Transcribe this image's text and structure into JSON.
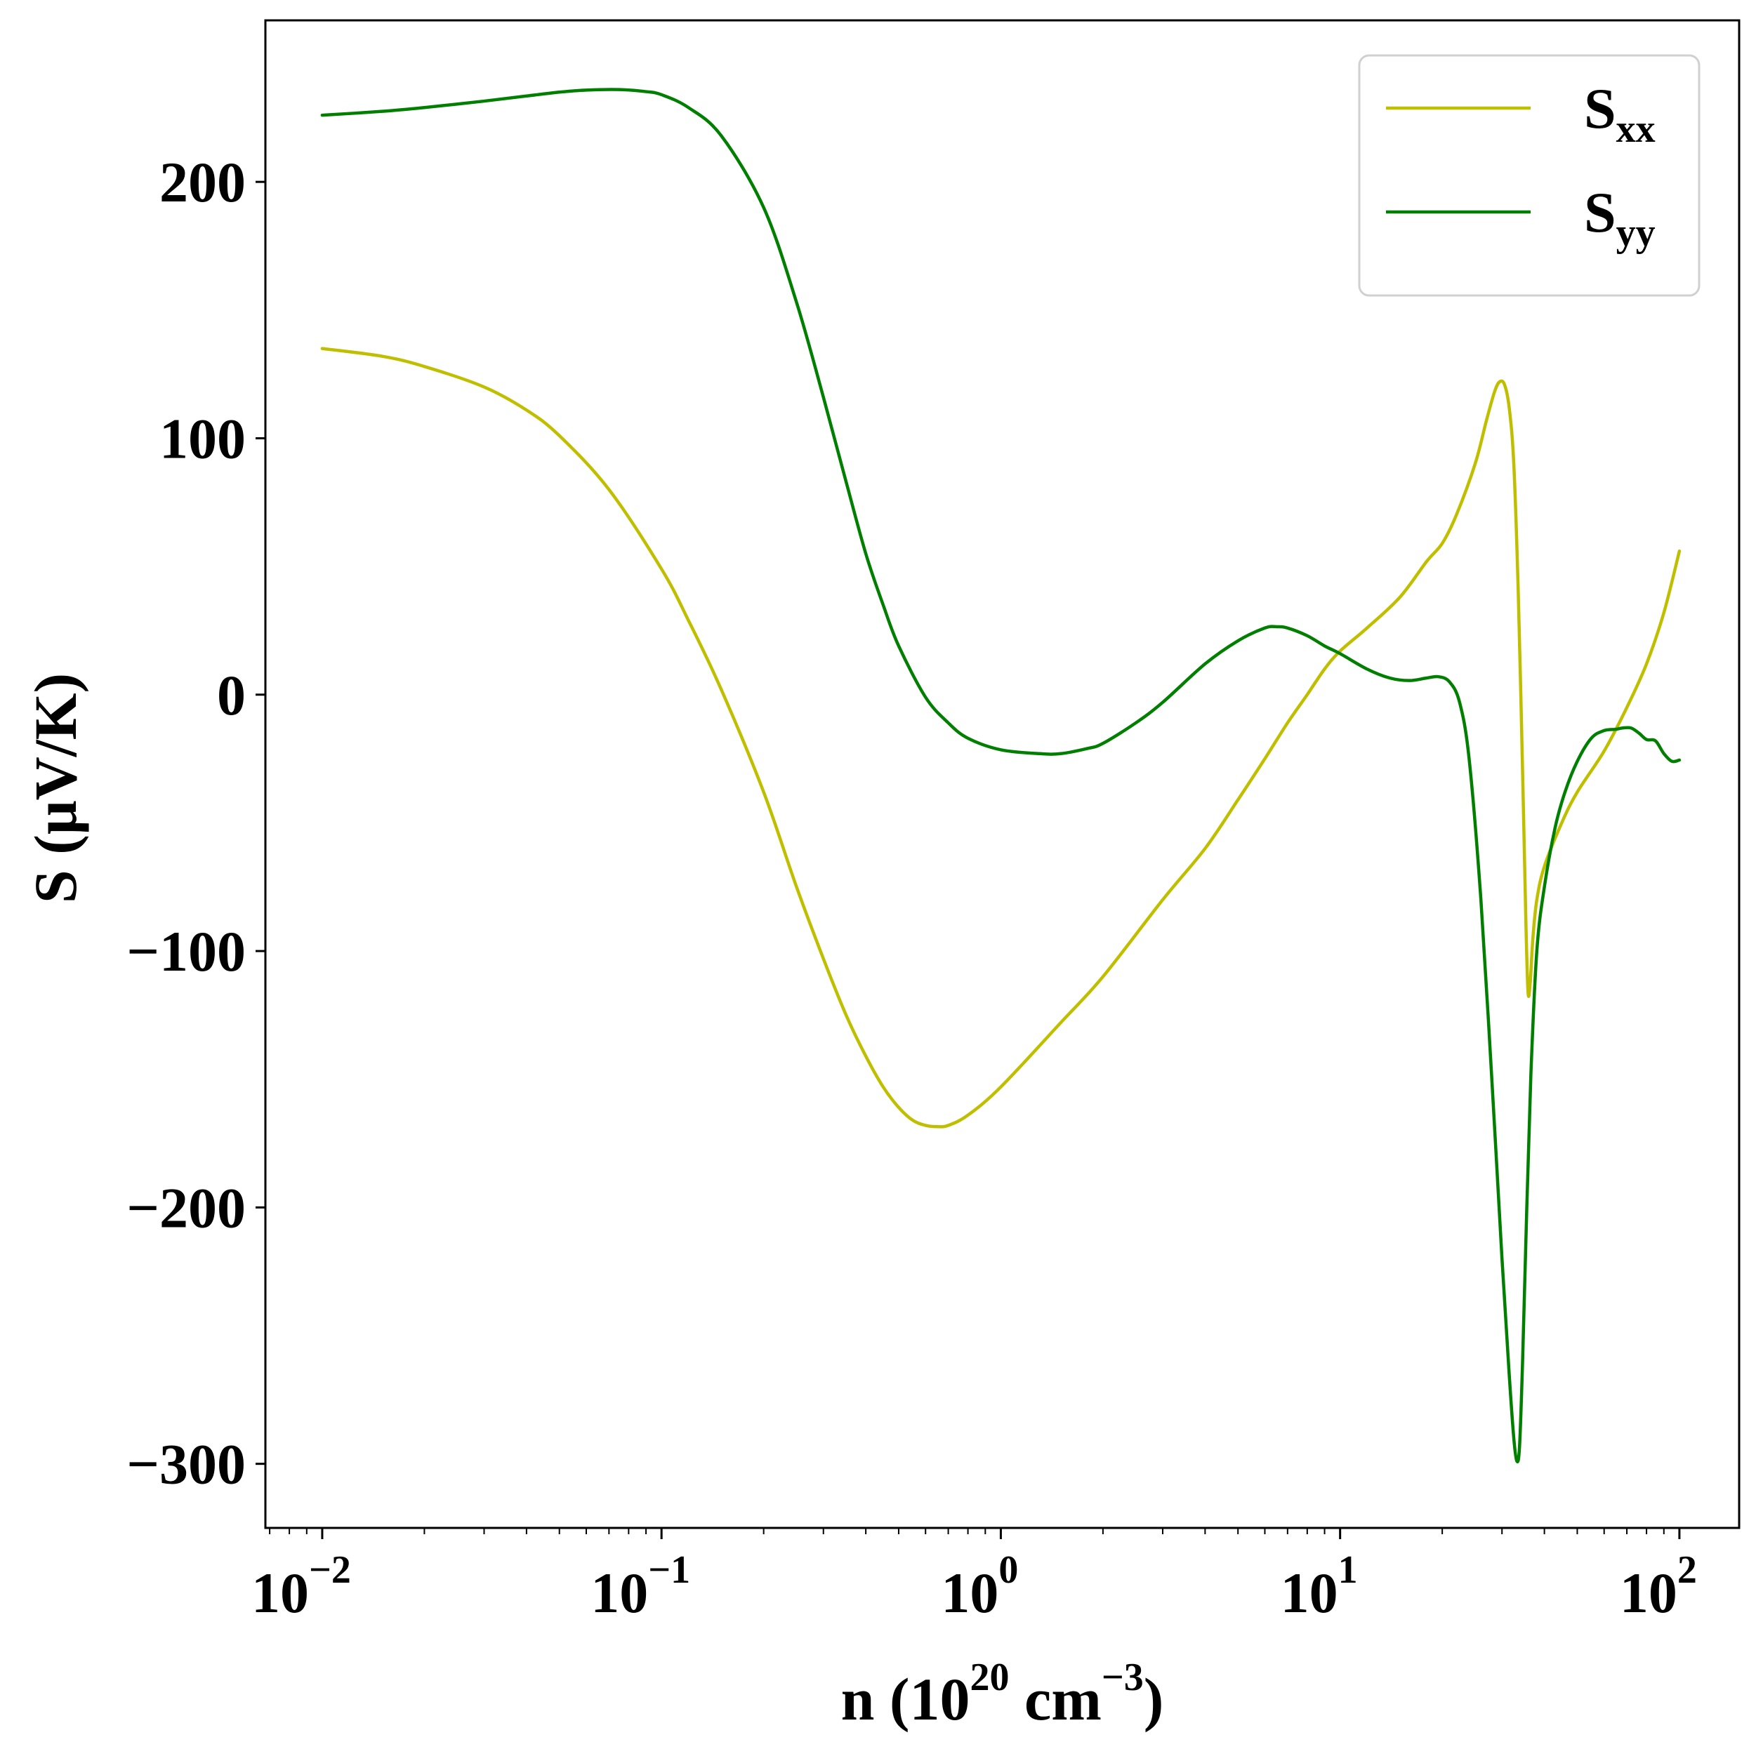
{
  "chart_data": {
    "type": "line",
    "xscale": "log",
    "xlim": [
      0.0068,
      150
    ],
    "ylim": [
      -325,
      263
    ],
    "xlabel": {
      "base": "n (10",
      "exp1": "20",
      "mid": " cm",
      "exp2": "−3",
      "end": ")"
    },
    "ylabel": "S (μV/K)",
    "grid": false,
    "legend_position": "top-right",
    "x_ticks": [
      {
        "value": 0.01,
        "base": "10",
        "exp": "−2"
      },
      {
        "value": 0.1,
        "base": "10",
        "exp": "−1"
      },
      {
        "value": 1,
        "base": "10",
        "exp": "0"
      },
      {
        "value": 10,
        "base": "10",
        "exp": "1"
      },
      {
        "value": 100,
        "base": "10",
        "exp": "2"
      }
    ],
    "y_ticks": [
      {
        "value": 200,
        "label": "200"
      },
      {
        "value": 100,
        "label": "100"
      },
      {
        "value": 0,
        "label": "0"
      },
      {
        "value": -100,
        "label": "−100"
      },
      {
        "value": -200,
        "label": "−200"
      },
      {
        "value": -300,
        "label": "−300"
      }
    ],
    "series": [
      {
        "name": "Sxx",
        "name_base": "S",
        "name_sub": "xx",
        "color": "#bfbf00",
        "points": [
          [
            0.01,
            135
          ],
          [
            0.015,
            132
          ],
          [
            0.02,
            128
          ],
          [
            0.03,
            120
          ],
          [
            0.04,
            111
          ],
          [
            0.05,
            101
          ],
          [
            0.07,
            80
          ],
          [
            0.1,
            49
          ],
          [
            0.12,
            29
          ],
          [
            0.15,
            2
          ],
          [
            0.2,
            -38
          ],
          [
            0.25,
            -75
          ],
          [
            0.3,
            -103
          ],
          [
            0.35,
            -125
          ],
          [
            0.4,
            -141
          ],
          [
            0.45,
            -153
          ],
          [
            0.5,
            -161
          ],
          [
            0.55,
            -166
          ],
          [
            0.6,
            -168
          ],
          [
            0.65,
            -168.5
          ],
          [
            0.7,
            -168
          ],
          [
            0.8,
            -164
          ],
          [
            1.0,
            -153
          ],
          [
            1.5,
            -128
          ],
          [
            2.0,
            -110
          ],
          [
            3.0,
            -80
          ],
          [
            4.0,
            -60
          ],
          [
            5.0,
            -41
          ],
          [
            6.0,
            -25
          ],
          [
            7.0,
            -11
          ],
          [
            8.0,
            0
          ],
          [
            9.0,
            10
          ],
          [
            10,
            17
          ],
          [
            12,
            26
          ],
          [
            15,
            38
          ],
          [
            18,
            52
          ],
          [
            20,
            59
          ],
          [
            22,
            70
          ],
          [
            25,
            90
          ],
          [
            27,
            107
          ],
          [
            28.5,
            118
          ],
          [
            29.5,
            122
          ],
          [
            30.5,
            121
          ],
          [
            31.5,
            112
          ],
          [
            32.5,
            90
          ],
          [
            33.5,
            40
          ],
          [
            34.5,
            -30
          ],
          [
            35.3,
            -90
          ],
          [
            35.8,
            -116
          ],
          [
            36.3,
            -113
          ],
          [
            37,
            -95
          ],
          [
            38,
            -80
          ],
          [
            40,
            -67
          ],
          [
            45,
            -50
          ],
          [
            50,
            -38
          ],
          [
            60,
            -22
          ],
          [
            70,
            -5
          ],
          [
            80,
            12
          ],
          [
            90,
            32
          ],
          [
            100,
            56
          ]
        ]
      },
      {
        "name": "Syy",
        "name_base": "S",
        "name_sub": "yy",
        "color": "#007f00",
        "points": [
          [
            0.01,
            226
          ],
          [
            0.015,
            227.5
          ],
          [
            0.02,
            229
          ],
          [
            0.03,
            231.5
          ],
          [
            0.04,
            233.5
          ],
          [
            0.05,
            235
          ],
          [
            0.06,
            235.8
          ],
          [
            0.075,
            236
          ],
          [
            0.09,
            235.2
          ],
          [
            0.1,
            234
          ],
          [
            0.12,
            229
          ],
          [
            0.15,
            218
          ],
          [
            0.2,
            190
          ],
          [
            0.25,
            153
          ],
          [
            0.3,
            116
          ],
          [
            0.35,
            83
          ],
          [
            0.4,
            55
          ],
          [
            0.45,
            35
          ],
          [
            0.5,
            19
          ],
          [
            0.6,
            -1
          ],
          [
            0.7,
            -11
          ],
          [
            0.8,
            -17
          ],
          [
            1.0,
            -21.5
          ],
          [
            1.3,
            -23
          ],
          [
            1.5,
            -23
          ],
          [
            1.8,
            -21
          ],
          [
            2.0,
            -19
          ],
          [
            2.5,
            -11
          ],
          [
            3.0,
            -3
          ],
          [
            4.0,
            12
          ],
          [
            5.0,
            21
          ],
          [
            6.0,
            26
          ],
          [
            6.5,
            26.5
          ],
          [
            7.0,
            26
          ],
          [
            8.0,
            23
          ],
          [
            9.0,
            19
          ],
          [
            10,
            16
          ],
          [
            12,
            10
          ],
          [
            14,
            6.5
          ],
          [
            16,
            5.5
          ],
          [
            18,
            6.5
          ],
          [
            19.5,
            7
          ],
          [
            21,
            5
          ],
          [
            22.5,
            -3
          ],
          [
            24,
            -25
          ],
          [
            26,
            -80
          ],
          [
            28,
            -150
          ],
          [
            30,
            -220
          ],
          [
            31.5,
            -265
          ],
          [
            32.5,
            -290
          ],
          [
            33.2,
            -299
          ],
          [
            33.8,
            -293
          ],
          [
            34.5,
            -260
          ],
          [
            35.5,
            -200
          ],
          [
            36.5,
            -148
          ],
          [
            38,
            -100
          ],
          [
            40,
            -75
          ],
          [
            43,
            -52
          ],
          [
            46,
            -38
          ],
          [
            50,
            -26
          ],
          [
            55,
            -17
          ],
          [
            60,
            -14
          ],
          [
            65,
            -13.5
          ],
          [
            68,
            -13
          ],
          [
            72,
            -13
          ],
          [
            76,
            -15
          ],
          [
            80,
            -17.5
          ],
          [
            85,
            -18
          ],
          [
            90,
            -23
          ],
          [
            95,
            -26
          ],
          [
            100,
            -25.5
          ]
        ]
      }
    ]
  }
}
